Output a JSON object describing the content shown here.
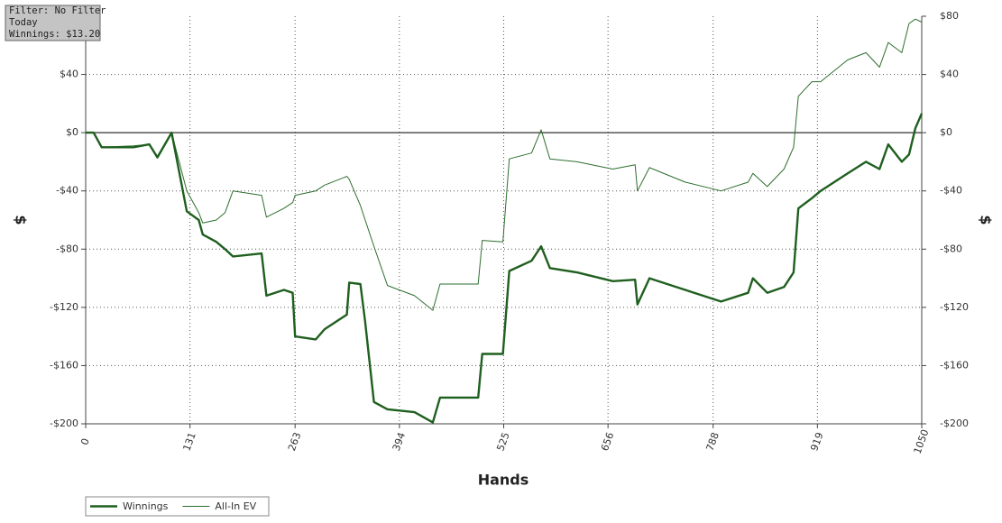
{
  "chart_data": {
    "type": "line",
    "annotations": [
      "Filter: No Filter",
      "Today",
      "Winnings: $13.20"
    ],
    "xlabel": "Hands",
    "ylabel": "$",
    "x": [
      0,
      10,
      20,
      60,
      80,
      90,
      108,
      127,
      142,
      147,
      164,
      175,
      185,
      221,
      227,
      249,
      260,
      263,
      289,
      300,
      328,
      331,
      345,
      351,
      362,
      379,
      413,
      436,
      445,
      493,
      498,
      524,
      532,
      560,
      572,
      583,
      617,
      662,
      690,
      693,
      708,
      753,
      798,
      832,
      838,
      856,
      877,
      889,
      895,
      912,
      923,
      957,
      980,
      997,
      1008,
      1025,
      1034,
      1042,
      1050
    ],
    "series": [
      {
        "name": "Winnings",
        "color": "#1f5f1f",
        "width": 2.4,
        "values": [
          0,
          0,
          -10,
          -10,
          -8,
          -17,
          0,
          -54,
          -60,
          -70,
          -75,
          -80,
          -85,
          -83,
          -112,
          -108,
          -110,
          -140,
          -142,
          -135,
          -125,
          -103,
          -104,
          -130,
          -185,
          -190,
          -192,
          -199,
          -182,
          -182,
          -152,
          -152,
          -95,
          -88,
          -78,
          -93,
          -96,
          -102,
          -101,
          -118,
          -100,
          -108,
          -116,
          -110,
          -100,
          -110,
          -106,
          -96,
          -52,
          -45,
          -40,
          -28,
          -20,
          -25,
          -8,
          -20,
          -15,
          3,
          13.2
        ]
      },
      {
        "name": "All-In EV",
        "color": "#2e6e2e",
        "width": 1,
        "values": [
          0,
          0,
          -10,
          -9,
          -8,
          -16,
          0,
          -40,
          -55,
          -62,
          -60,
          -55,
          -40,
          -43,
          -58,
          -52,
          -48,
          -43,
          -40,
          -36,
          -30,
          -32,
          -50,
          -60,
          -78,
          -105,
          -112,
          -122,
          -104,
          -104,
          -74,
          -75,
          -18,
          -14,
          2,
          -18,
          -20,
          -25,
          -22,
          -40,
          -24,
          -34,
          -40,
          -34,
          -28,
          -37,
          -25,
          -10,
          25,
          35,
          35,
          50,
          55,
          45,
          62,
          55,
          75,
          78,
          76
        ]
      }
    ],
    "xlim": [
      0,
      1050
    ],
    "xticks": [
      0,
      131,
      263,
      394,
      525,
      656,
      788,
      919,
      1050
    ],
    "ylim": [
      -200,
      80
    ],
    "yticks": [
      {
        "value": 40,
        "label": "$40"
      },
      {
        "value": 0,
        "label": "$0"
      },
      {
        "value": -40,
        "label": "-$40"
      },
      {
        "value": -80,
        "label": "-$80"
      },
      {
        "value": -120,
        "label": "-$120"
      },
      {
        "value": -160,
        "label": "-$160"
      },
      {
        "value": -200,
        "label": "-$200"
      }
    ],
    "y2lim": [
      -200,
      80
    ],
    "y2ticks": [
      {
        "value": 80,
        "label": "$80"
      },
      {
        "value": 40,
        "label": "$40"
      },
      {
        "value": 0,
        "label": "$0"
      },
      {
        "value": -40,
        "label": "-$40"
      },
      {
        "value": -80,
        "label": "-$80"
      },
      {
        "value": -120,
        "label": "-$120"
      },
      {
        "value": -160,
        "label": "-$160"
      },
      {
        "value": -200,
        "label": "-$200"
      }
    ],
    "grid": true,
    "legend": "bottom-left"
  }
}
